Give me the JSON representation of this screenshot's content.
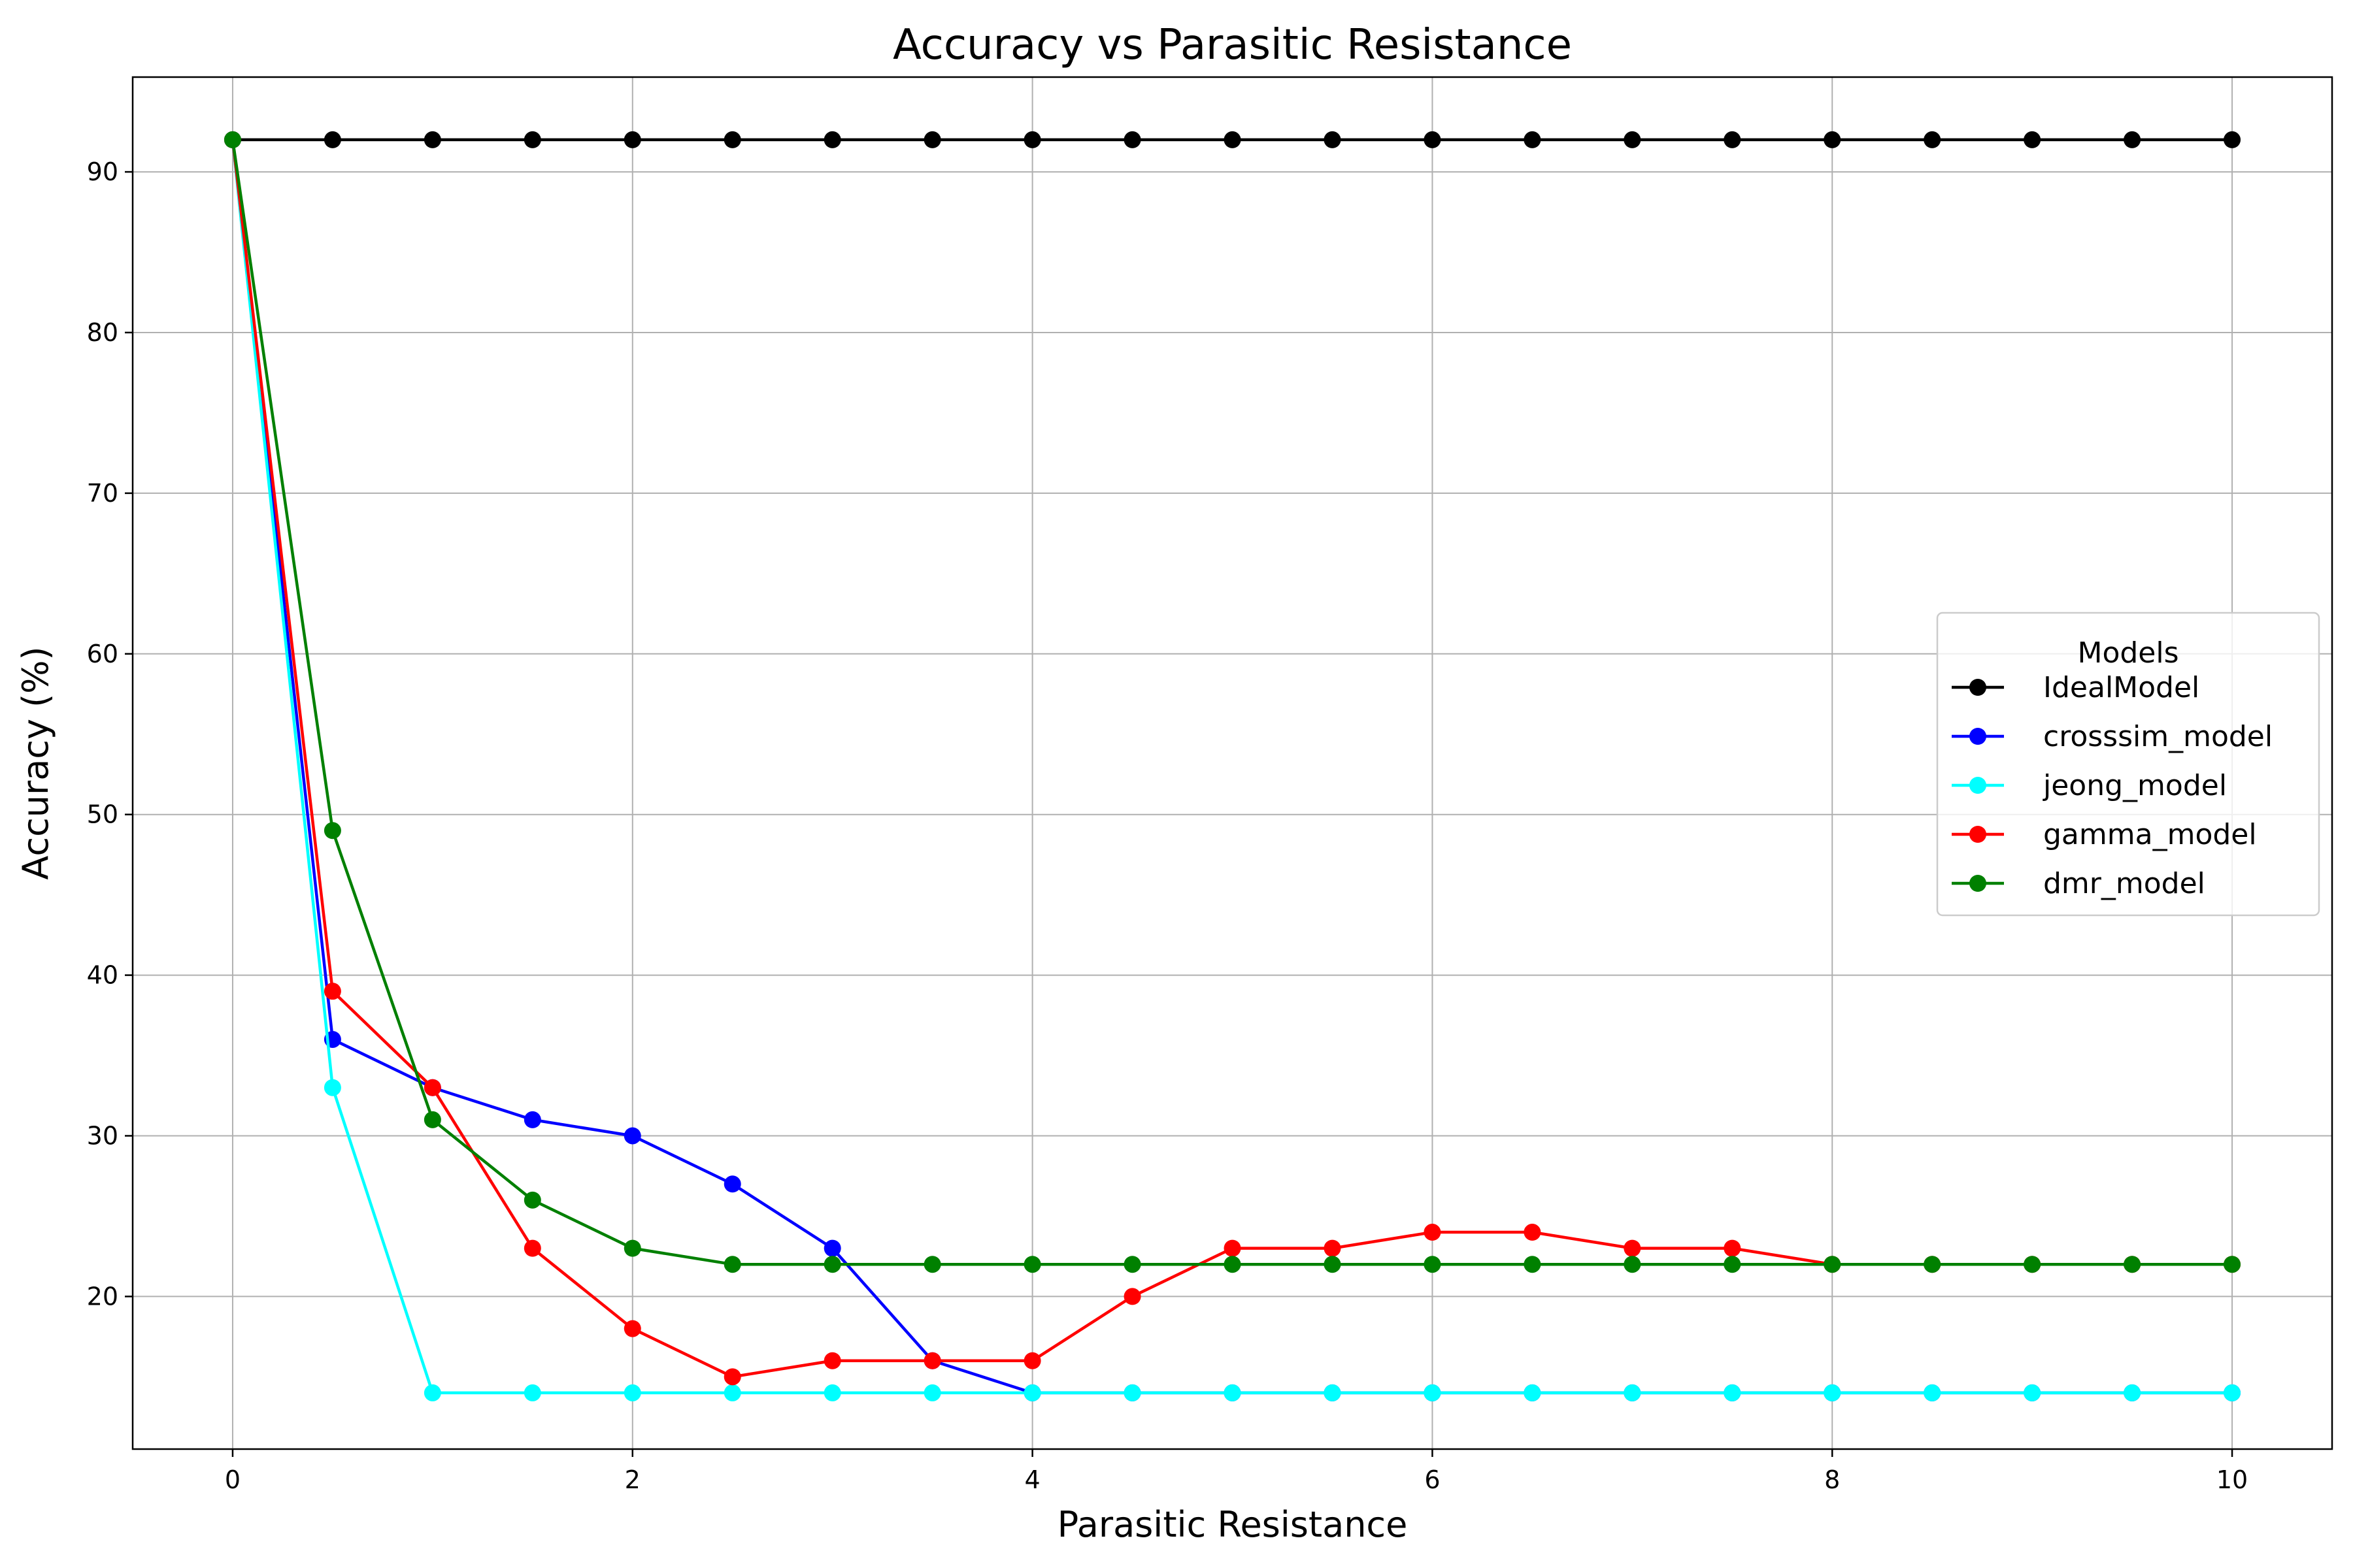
{
  "chart_data": {
    "type": "line",
    "title": "Accuracy vs Parasitic Resistance",
    "xlabel": "Parasitic Resistance",
    "ylabel": "Accuracy (%)",
    "xlim": [
      -0.5,
      10.5
    ],
    "ylim": [
      10.5,
      95.9
    ],
    "xticks": [
      0,
      2,
      4,
      6,
      8,
      10
    ],
    "yticks": [
      20,
      30,
      40,
      50,
      60,
      70,
      80,
      90
    ],
    "grid": true,
    "legend": {
      "title": "Models",
      "placement": "center-right"
    },
    "x": [
      0,
      0.5,
      1,
      1.5,
      2,
      2.5,
      3,
      3.5,
      4,
      4.5,
      5,
      5.5,
      6,
      6.5,
      7,
      7.5,
      8,
      8.5,
      9,
      9.5,
      10
    ],
    "series": [
      {
        "name": "IdealModel",
        "color": "#000000",
        "values": [
          92,
          92,
          92,
          92,
          92,
          92,
          92,
          92,
          92,
          92,
          92,
          92,
          92,
          92,
          92,
          92,
          92,
          92,
          92,
          92,
          92
        ]
      },
      {
        "name": "crosssim_model",
        "color": "#0000ff",
        "values": [
          92,
          36,
          33,
          31,
          30,
          27,
          23,
          16,
          14,
          14,
          14,
          14,
          14,
          14,
          14,
          14,
          14,
          14,
          14,
          14,
          14
        ]
      },
      {
        "name": "jeong_model",
        "color": "#00ffff",
        "values": [
          92,
          33,
          14,
          14,
          14,
          14,
          14,
          14,
          14,
          14,
          14,
          14,
          14,
          14,
          14,
          14,
          14,
          14,
          14,
          14,
          14
        ]
      },
      {
        "name": "gamma_model",
        "color": "#ff0000",
        "values": [
          92,
          39,
          33,
          23,
          18,
          15,
          16,
          16,
          16,
          20,
          23,
          23,
          24,
          24,
          23,
          23,
          22,
          22,
          22,
          22,
          22
        ]
      },
      {
        "name": "dmr_model",
        "color": "#008000",
        "values": [
          92,
          49,
          31,
          26,
          23,
          22,
          22,
          22,
          22,
          22,
          22,
          22,
          22,
          22,
          22,
          22,
          22,
          22,
          22,
          22,
          22
        ]
      }
    ]
  }
}
